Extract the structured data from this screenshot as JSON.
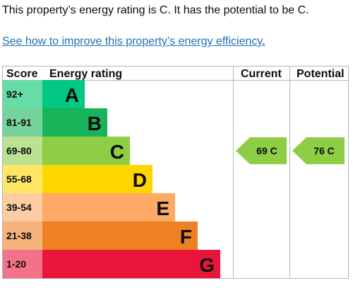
{
  "intro_text": "This property’s energy rating is C. It has the potential to be C.",
  "improve_link": "See how to improve this property’s energy efficiency",
  "improve_link_trailing": ".",
  "table": {
    "headers": {
      "score": "Score",
      "rating": "Energy rating",
      "current": "Current",
      "potential": "Potential"
    },
    "bands": [
      {
        "score": "92+",
        "letter": "A",
        "color": "#00c781",
        "score_bg": "#66dda7"
      },
      {
        "score": "81-91",
        "letter": "B",
        "color": "#19b459",
        "score_bg": "#75d29b"
      },
      {
        "score": "69-80",
        "letter": "C",
        "color": "#8dce46",
        "score_bg": "#bbe290"
      },
      {
        "score": "55-68",
        "letter": "D",
        "color": "#ffd500",
        "score_bg": "#ffe666"
      },
      {
        "score": "39-54",
        "letter": "E",
        "color": "#fcaa65",
        "score_bg": "#fdcca3"
      },
      {
        "score": "21-38",
        "letter": "F",
        "color": "#ef8023",
        "score_bg": "#f5b37b"
      },
      {
        "score": "1-20",
        "letter": "G",
        "color": "#e9153b",
        "score_bg": "#f27389"
      }
    ],
    "current": {
      "label": "69 C",
      "value": 69,
      "band": "C",
      "color": "#8dce46"
    },
    "potential": {
      "label": "76 C",
      "value": 76,
      "band": "C",
      "color": "#8dce46"
    }
  }
}
